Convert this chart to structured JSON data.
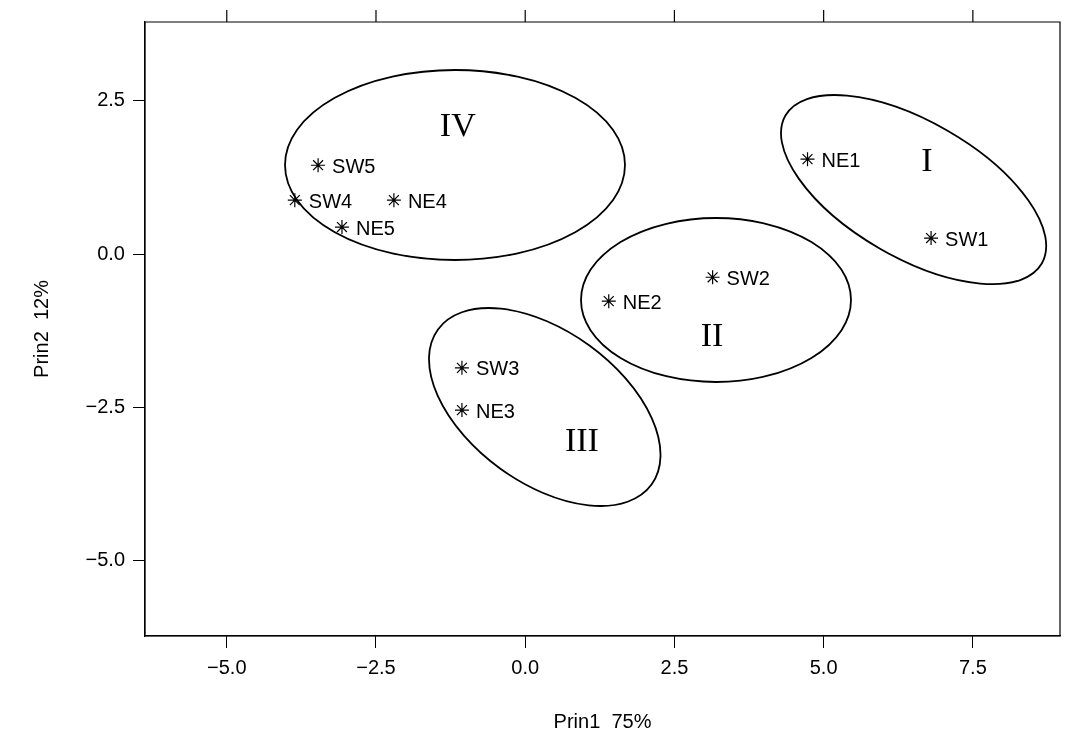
{
  "chart_data": {
    "type": "scatter",
    "xlabel": "Prin1  75%",
    "ylabel": "Prin2  12%",
    "x": [
      4.73,
      6.8,
      1.4,
      3.14,
      -1.06,
      -1.06,
      -3.86,
      -2.2,
      -3.07,
      -3.47
    ],
    "values": [
      1.55,
      0.26,
      -0.77,
      -0.38,
      -1.86,
      -2.55,
      0.88,
      0.88,
      0.44,
      1.45
    ],
    "color": "#000000",
    "marker": "cross",
    "grid": false,
    "legend": false,
    "xlim": [
      -6.37,
      8.96
    ],
    "ylim": [
      -6.24,
      3.79
    ],
    "xticks": [
      {
        "value": -5,
        "label": "−5.0"
      },
      {
        "value": -2.5,
        "label": "−2.5"
      },
      {
        "value": 0,
        "label": "0.0"
      },
      {
        "value": 2.5,
        "label": "2.5"
      },
      {
        "value": 5,
        "label": "5.0"
      },
      {
        "value": 7.5,
        "label": "7.5"
      }
    ],
    "yticks": [
      {
        "value": -5,
        "label": "−5.0"
      },
      {
        "value": -2.5,
        "label": "−2.5"
      },
      {
        "value": 0,
        "label": "0.0"
      },
      {
        "value": 2.5,
        "label": "2.5"
      }
    ],
    "annotations": [
      {
        "text": "NE1",
        "x": 4.73,
        "y": 1.55
      },
      {
        "text": "SW1",
        "x": 6.8,
        "y": 0.26
      },
      {
        "text": "NE2",
        "x": 1.4,
        "y": -0.77
      },
      {
        "text": "SW2",
        "x": 3.14,
        "y": -0.38
      },
      {
        "text": "SW3",
        "x": -1.06,
        "y": -1.86
      },
      {
        "text": "NE3",
        "x": -1.06,
        "y": -2.55
      },
      {
        "text": "SW4",
        "x": -3.86,
        "y": 0.88
      },
      {
        "text": "NE4",
        "x": -2.2,
        "y": 0.88
      },
      {
        "text": "NE5",
        "x": -3.07,
        "y": 0.44
      },
      {
        "text": "SW5",
        "x": -3.47,
        "y": 1.45
      },
      "I",
      "II",
      "III",
      "IV"
    ]
  }
}
